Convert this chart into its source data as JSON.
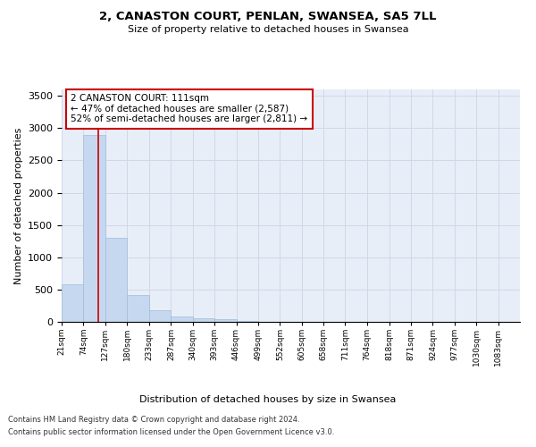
{
  "title": "2, CANASTON COURT, PENLAN, SWANSEA, SA5 7LL",
  "subtitle": "Size of property relative to detached houses in Swansea",
  "xlabel": "Distribution of detached houses by size in Swansea",
  "ylabel": "Number of detached properties",
  "bin_labels": [
    "21sqm",
    "74sqm",
    "127sqm",
    "180sqm",
    "233sqm",
    "287sqm",
    "340sqm",
    "393sqm",
    "446sqm",
    "499sqm",
    "552sqm",
    "605sqm",
    "658sqm",
    "711sqm",
    "764sqm",
    "818sqm",
    "871sqm",
    "924sqm",
    "977sqm",
    "1030sqm",
    "1083sqm"
  ],
  "bar_heights": [
    580,
    2900,
    1300,
    420,
    175,
    90,
    55,
    35,
    20,
    5,
    0,
    0,
    0,
    0,
    0,
    0,
    0,
    0,
    0,
    0,
    0
  ],
  "bar_color": "#c5d8f0",
  "bar_edge_color": "#a0bcd8",
  "property_line_x": 111,
  "property_line_color": "#cc0000",
  "annotation_line1": "2 CANASTON COURT: 111sqm",
  "annotation_line2": "← 47% of detached houses are smaller (2,587)",
  "annotation_line3": "52% of semi-detached houses are larger (2,811) →",
  "annotation_box_color": "#cc0000",
  "ylim": [
    0,
    3600
  ],
  "yticks": [
    0,
    500,
    1000,
    1500,
    2000,
    2500,
    3000,
    3500
  ],
  "grid_color": "#d0d8e8",
  "background_color": "#e8eef8",
  "footer_line1": "Contains HM Land Registry data © Crown copyright and database right 2024.",
  "footer_line2": "Contains public sector information licensed under the Open Government Licence v3.0.",
  "bin_edges": [
    21,
    74,
    127,
    180,
    233,
    287,
    340,
    393,
    446,
    499,
    552,
    605,
    658,
    711,
    764,
    818,
    871,
    924,
    977,
    1030,
    1083,
    1136
  ]
}
